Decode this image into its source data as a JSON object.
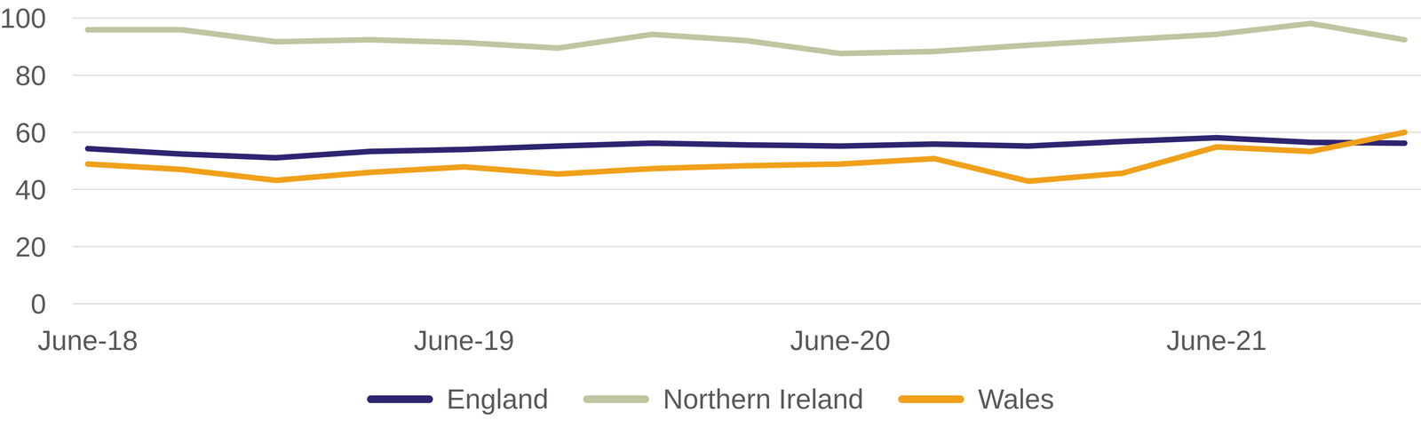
{
  "chart_data": {
    "type": "line",
    "categories": [
      "June-18",
      null,
      null,
      null,
      "June-19",
      null,
      null,
      null,
      "June-20",
      null,
      null,
      null,
      "June-21",
      null,
      null
    ],
    "series": [
      {
        "name": "England",
        "color": "#2e2570",
        "values": [
          54.3,
          52.4,
          51.1,
          53.3,
          54.0,
          55.2,
          56.2,
          55.6,
          55.2,
          55.9,
          55.2,
          56.8,
          58.1,
          56.5,
          56.2
        ]
      },
      {
        "name": "Northern Ireland",
        "color": "#bfc5a0",
        "values": [
          95.9,
          95.9,
          91.7,
          92.4,
          91.4,
          89.5,
          94.3,
          92.1,
          87.6,
          88.3,
          90.5,
          92.4,
          94.3,
          98.1,
          92.4
        ]
      },
      {
        "name": "Wales",
        "color": "#f0a01a",
        "values": [
          48.9,
          47.0,
          43.2,
          46.0,
          47.9,
          45.4,
          47.3,
          48.3,
          48.9,
          50.8,
          42.9,
          45.7,
          54.9,
          53.3,
          60.0
        ]
      }
    ],
    "ylim": [
      0,
      100
    ],
    "yticks": [
      0,
      20,
      40,
      60,
      80,
      100
    ],
    "grid": true,
    "legend": "bottom"
  }
}
